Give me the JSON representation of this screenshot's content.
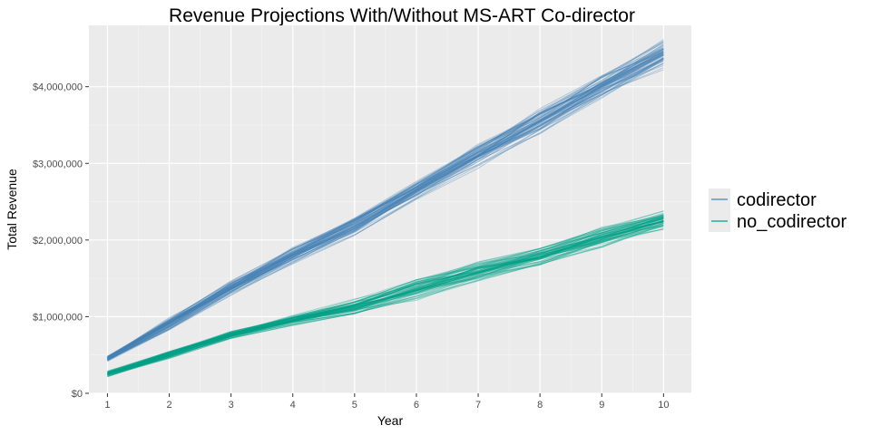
{
  "chart_data": {
    "type": "line",
    "title": "Revenue Projections With/Without MS-ART Co-director",
    "xlabel": "Year",
    "ylabel": "Total Revenue",
    "x": [
      1,
      2,
      3,
      4,
      5,
      6,
      7,
      8,
      9,
      10
    ],
    "xlim": [
      0.7,
      10.45
    ],
    "ylim": [
      0,
      4800000
    ],
    "x_ticks": [
      1,
      2,
      3,
      4,
      5,
      6,
      7,
      8,
      9,
      10
    ],
    "y_ticks": [
      0,
      1000000,
      2000000,
      3000000,
      4000000
    ],
    "y_tick_labels": [
      "$0",
      "$1,000,000",
      "$2,000,000",
      "$3,000,000",
      "$4,000,000"
    ],
    "grid": true,
    "legend_position": "right",
    "simulations_per_group": 60,
    "groups": [
      {
        "name": "codirector",
        "color": "#4682b4",
        "mean": [
          450000,
          900000,
          1370000,
          1800000,
          2180000,
          2650000,
          3100000,
          3550000,
          4000000,
          4420000
        ],
        "spread_low": [
          400000,
          800000,
          1250000,
          1650000,
          2000000,
          2450000,
          2850000,
          3250000,
          3700000,
          4100000
        ],
        "spread_high": [
          520000,
          1050000,
          1520000,
          1950000,
          2350000,
          2800000,
          3300000,
          3750000,
          4200000,
          4650000
        ]
      },
      {
        "name": "no_codirector",
        "color": "#00a087",
        "mean": [
          250000,
          500000,
          760000,
          950000,
          1120000,
          1350000,
          1580000,
          1780000,
          2020000,
          2250000
        ],
        "spread_low": [
          200000,
          430000,
          680000,
          850000,
          980000,
          1180000,
          1400000,
          1600000,
          1830000,
          2050000
        ],
        "spread_high": [
          310000,
          580000,
          830000,
          1050000,
          1280000,
          1600000,
          1800000,
          1980000,
          2250000,
          2450000
        ]
      }
    ]
  }
}
